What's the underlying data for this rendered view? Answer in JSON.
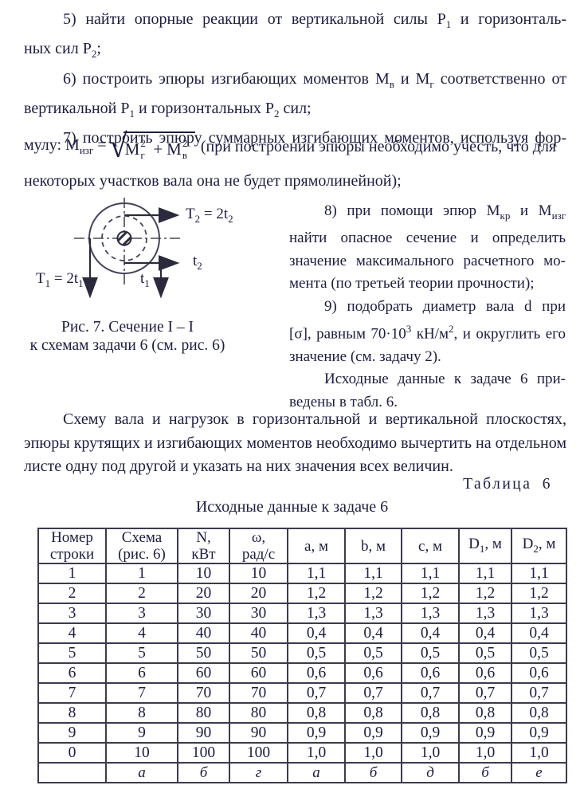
{
  "colors": {
    "text": "#1d1d40",
    "table_border": "#3b3b4e",
    "figure_stroke": "#4a4a58"
  },
  "top_a": {
    "lines": [
      {
        "t": "5) найти опорные реакции от вертикальной силы P_{1} и горизонталь-",
        "ind": true,
        "j": true
      },
      {
        "t": "ных сил P_{2};",
        "ind": false,
        "j": false
      },
      {
        "t": "6) построить эпюры изгибающих моментов М_{в} и М_{г} соответственно от",
        "ind": true,
        "j": true
      },
      {
        "t": "вертикальной P_{1} и горизонтальных P_{2} сил;",
        "ind": false,
        "j": false
      },
      {
        "t": "7) построить эпюру суммарных изгибающих моментов, используя фор-",
        "ind": true,
        "j": true
      }
    ]
  },
  "formula": {
    "lead": "мулу: М",
    "lead_sub": "изг",
    "equals": "=",
    "radical": "√",
    "rad1_base": "М",
    "rad1_sub": "г",
    "rad1_sup": "2",
    "plus": "+",
    "rad2_base": "М",
    "rad2_sub": "в",
    "rad2_sup": "2",
    "tail": "(при построении эпюры необходимо учесть, что для"
  },
  "top_b": {
    "lines": [
      {
        "t": "некоторых участков вала она не будет прямолинейной);",
        "ind": false,
        "j": false
      }
    ]
  },
  "figure": {
    "labels": {
      "T2": "T_{2} = 2t_{2}",
      "t2": "t_{2}",
      "T1": "T_{1} = 2t_{1}",
      "t1": "t_{1}"
    },
    "caption": [
      "Рис. 7.  Сечение I – I",
      "к схемам задачи 6 (см. рис. 6)"
    ]
  },
  "right_column": {
    "lines": [
      {
        "t": "8) при помощи эпюр М_{кр} и М_{изг}",
        "ind": true,
        "j": true
      },
      {
        "t": "найти опасное сечение и определить",
        "ind": false,
        "j": true
      },
      {
        "t": "значение максимального расчетного мо-",
        "ind": false,
        "j": true
      },
      {
        "t": "мента (по третьей теории прочности);",
        "ind": false,
        "j": false
      },
      {
        "t": "9) подобрать диаметр вала d при",
        "ind": true,
        "j": true
      },
      {
        "t": "[σ], равным 70·10^{3} кН/м^{2}, и округлить его",
        "ind": false,
        "j": true
      },
      {
        "t": "значение (см. задачу 2).",
        "ind": false,
        "j": false
      },
      {
        "t": "Исходные данные к задаче 6 при-",
        "ind": true,
        "j": true
      },
      {
        "t": "ведены в  табл. 6.",
        "ind": false,
        "j": false
      }
    ]
  },
  "bottom_paragraph": {
    "lines": [
      {
        "t": "Схему вала и нагрузок в горизонтальной и вертикальной плоскостях,",
        "ind": true,
        "j": true
      },
      {
        "t": "эпюры крутящих и изгибающих моментов необходимо вычертить на отдельном",
        "ind": false,
        "j": true
      },
      {
        "t": "листе одну под другой и указать на них значения всех величин.",
        "ind": false,
        "j": false
      }
    ]
  },
  "table": {
    "label": "Таблица 6",
    "title": "Исходные данные к задаче 6",
    "headers": [
      "Номер\nстроки",
      "Схема\n(рис. 6)",
      "N,\nкВт",
      "ω,\nрад/с",
      "a, м",
      "b, м",
      "c, м",
      "D_{1}, м",
      "D_{2}, м"
    ],
    "rows": [
      [
        "1",
        "1",
        "10",
        "10",
        "1,1",
        "1,1",
        "1,1",
        "1,1",
        "1,1"
      ],
      [
        "2",
        "2",
        "20",
        "20",
        "1,2",
        "1,2",
        "1,2",
        "1,2",
        "1,2"
      ],
      [
        "3",
        "3",
        "30",
        "30",
        "1,3",
        "1,3",
        "1,3",
        "1,3",
        "1,3"
      ],
      [
        "4",
        "4",
        "40",
        "40",
        "0,4",
        "0,4",
        "0,4",
        "0,4",
        "0,4"
      ],
      [
        "5",
        "5",
        "50",
        "50",
        "0,5",
        "0,5",
        "0,5",
        "0,5",
        "0,5"
      ],
      [
        "6",
        "6",
        "60",
        "60",
        "0,6",
        "0,6",
        "0,6",
        "0,6",
        "0,6"
      ],
      [
        "7",
        "7",
        "70",
        "70",
        "0,7",
        "0,7",
        "0,7",
        "0,7",
        "0,7"
      ],
      [
        "8",
        "8",
        "80",
        "80",
        "0,8",
        "0,8",
        "0,8",
        "0,8",
        "0,8"
      ],
      [
        "9",
        "9",
        "90",
        "90",
        "0,9",
        "0,9",
        "0,9",
        "0,9",
        "0,9"
      ],
      [
        "0",
        "10",
        "100",
        "100",
        "1,0",
        "1,0",
        "1,0",
        "1,0",
        "1,0"
      ]
    ],
    "footer_row": [
      "",
      "а",
      "б",
      "г",
      "а",
      "б",
      "д",
      "б",
      "е"
    ]
  }
}
